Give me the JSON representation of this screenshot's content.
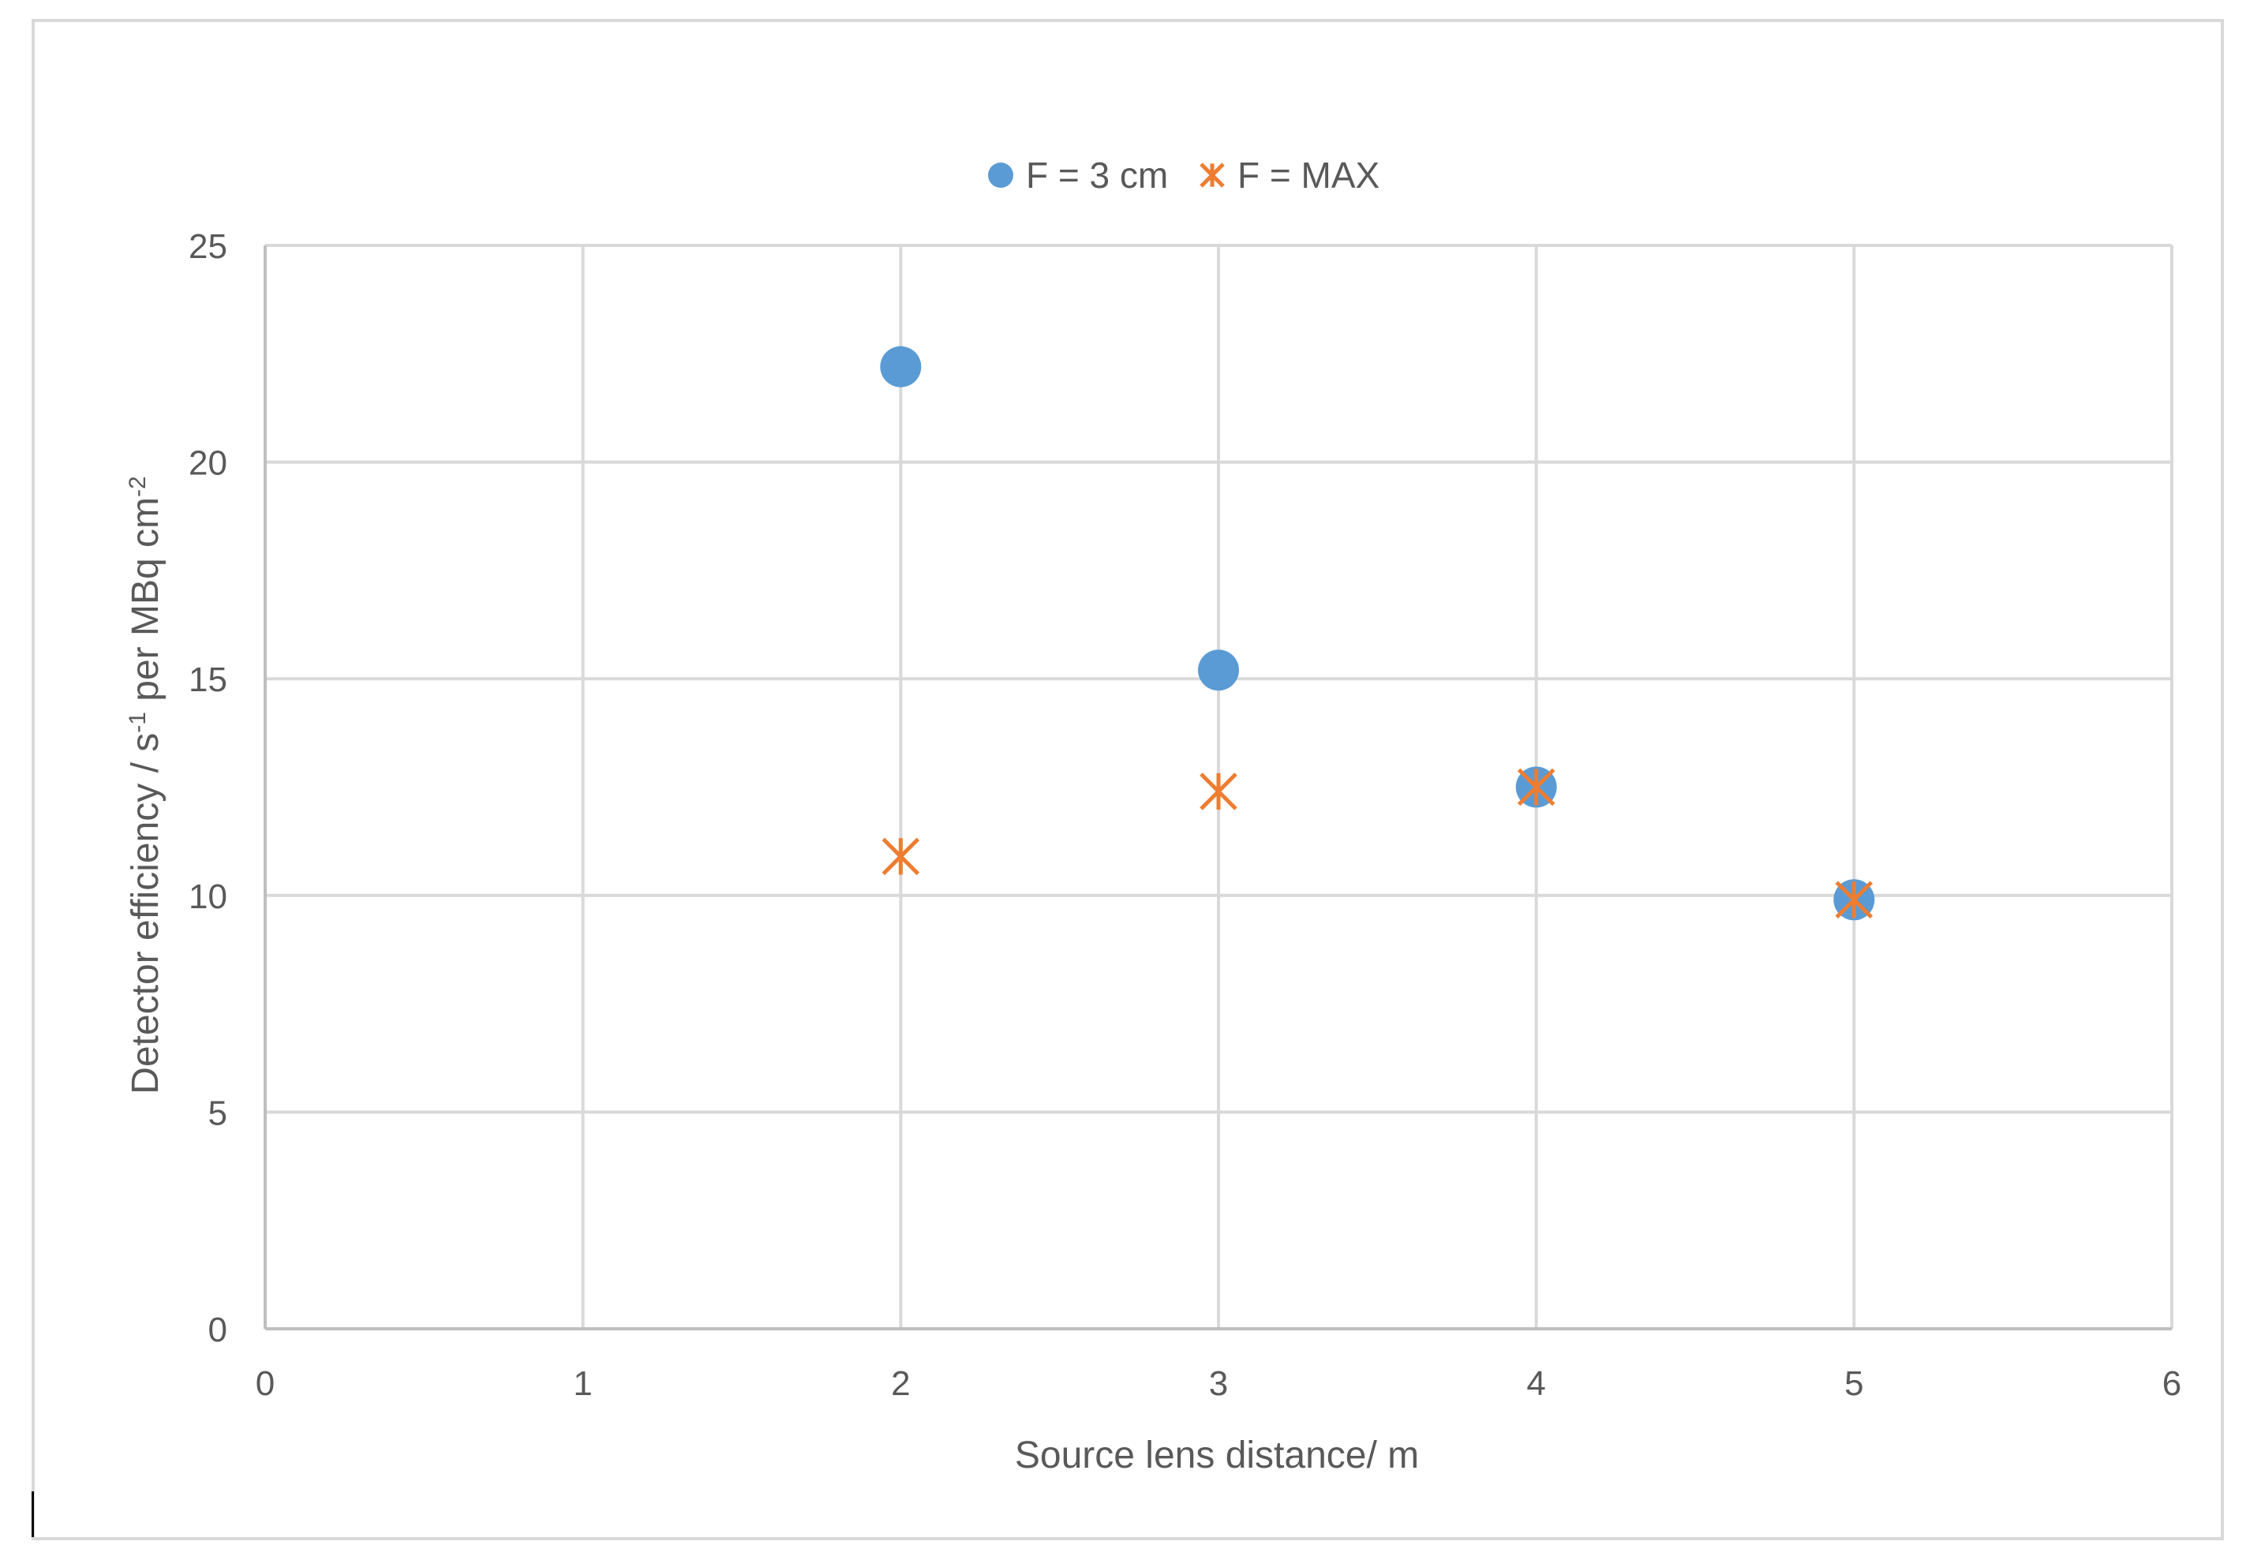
{
  "chart_data": {
    "type": "scatter",
    "title": "",
    "xlabel": "Source lens distance/ m",
    "ylabel": {
      "parts": [
        {
          "text": "Detector efficiency / s",
          "sup": false
        },
        {
          "text": "-1",
          "sup": true
        },
        {
          "text": " per MBq cm",
          "sup": false
        },
        {
          "text": "-2",
          "sup": true
        }
      ]
    },
    "xlim": [
      0,
      6
    ],
    "ylim": [
      0,
      25
    ],
    "x_ticks": [
      "0",
      "1",
      "2",
      "3",
      "4",
      "5",
      "6"
    ],
    "y_ticks": [
      "0",
      "5",
      "10",
      "15",
      "20",
      "25"
    ],
    "grid": true,
    "legend_position": "top-center",
    "series": [
      {
        "name": "F = 3 cm",
        "marker": "circle",
        "color": "#5b9bd5",
        "points": [
          {
            "x": 2,
            "y": 22.2
          },
          {
            "x": 3,
            "y": 15.2
          },
          {
            "x": 4,
            "y": 12.5
          },
          {
            "x": 5,
            "y": 9.9
          }
        ]
      },
      {
        "name": "F = MAX",
        "marker": "star",
        "color": "#ed7d31",
        "points": [
          {
            "x": 2,
            "y": 10.9
          },
          {
            "x": 3,
            "y": 12.4
          },
          {
            "x": 4,
            "y": 12.5
          },
          {
            "x": 5,
            "y": 9.9
          }
        ]
      }
    ]
  }
}
